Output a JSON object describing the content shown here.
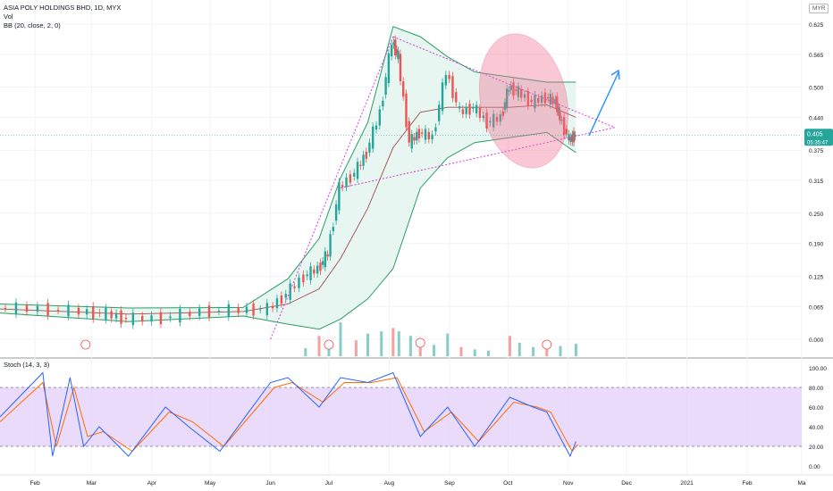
{
  "header": {
    "title": "ASIA POLY HOLDINGS BHD, 1D, MYX",
    "volume_label": "Vol",
    "bb_label": "BB (20, close, 2, 0)",
    "stoch_label": "Stoch (14, 3, 3)",
    "currency": "MYR"
  },
  "price_axis": {
    "ticks": [
      "0.625",
      "0.565",
      "0.500",
      "0.440",
      "0.375",
      "0.315",
      "0.250",
      "0.190",
      "0.125",
      "0.065",
      "0.000"
    ],
    "last_price": "0.405",
    "countdown": "05:35:47"
  },
  "stoch_axis": {
    "ticks": [
      "100.00",
      "80.00",
      "60.00",
      "40.00",
      "20.00",
      "0.00"
    ]
  },
  "time_axis": {
    "labels": [
      "Feb",
      "Mar",
      "Apr",
      "May",
      "Jun",
      "Jul",
      "Aug",
      "Sep",
      "Oct",
      "Nov",
      "Dec",
      "2021",
      "Feb",
      "Ma"
    ]
  },
  "colors": {
    "up": "#26a69a",
    "down": "#ef5350",
    "bb_line": "#2a9d64",
    "bb_basis": "#a05050",
    "bb_fill": "#e8f6f1",
    "trend_line": "#d63adf",
    "highlight": "#f07090",
    "arrow": "#1e90ff",
    "stoch_band": "#e1ccfa",
    "stoch_k": "#2962ff",
    "stoch_d": "#ff6d00"
  },
  "chart_data": {
    "type": "candlestick",
    "title": "ASIA POLY HOLDINGS BHD, 1D, MYX",
    "price_ylim": [
      0.0,
      0.64
    ],
    "price_path": [
      {
        "x": "2020-01-14",
        "y": 0.062
      },
      {
        "x": "2020-02-05",
        "y": 0.06
      },
      {
        "x": "2020-02-26",
        "y": 0.055
      },
      {
        "x": "2020-03-10",
        "y": 0.05
      },
      {
        "x": "2020-03-20",
        "y": 0.04
      },
      {
        "x": "2020-04-08",
        "y": 0.042
      },
      {
        "x": "2020-04-28",
        "y": 0.055
      },
      {
        "x": "2020-05-18",
        "y": 0.058
      },
      {
        "x": "2020-06-01",
        "y": 0.06
      },
      {
        "x": "2020-06-10",
        "y": 0.09
      },
      {
        "x": "2020-06-19",
        "y": 0.125
      },
      {
        "x": "2020-06-26",
        "y": 0.14
      },
      {
        "x": "2020-07-01",
        "y": 0.17
      },
      {
        "x": "2020-07-07",
        "y": 0.3
      },
      {
        "x": "2020-07-15",
        "y": 0.33
      },
      {
        "x": "2020-07-21",
        "y": 0.37
      },
      {
        "x": "2020-07-28",
        "y": 0.45
      },
      {
        "x": "2020-08-03",
        "y": 0.59
      },
      {
        "x": "2020-08-06",
        "y": 0.56
      },
      {
        "x": "2020-08-12",
        "y": 0.39
      },
      {
        "x": "2020-08-17",
        "y": 0.41
      },
      {
        "x": "2020-08-24",
        "y": 0.4
      },
      {
        "x": "2020-08-31",
        "y": 0.53
      },
      {
        "x": "2020-09-07",
        "y": 0.45
      },
      {
        "x": "2020-09-14",
        "y": 0.46
      },
      {
        "x": "2020-09-21",
        "y": 0.43
      },
      {
        "x": "2020-09-28",
        "y": 0.44
      },
      {
        "x": "2020-10-02",
        "y": 0.5
      },
      {
        "x": "2020-10-07",
        "y": 0.49
      },
      {
        "x": "2020-10-14",
        "y": 0.47
      },
      {
        "x": "2020-10-21",
        "y": 0.48
      },
      {
        "x": "2020-10-26",
        "y": 0.47
      },
      {
        "x": "2020-10-28",
        "y": 0.44
      },
      {
        "x": "2020-11-02",
        "y": 0.395
      },
      {
        "x": "2020-11-05",
        "y": 0.405
      }
    ],
    "bb_upper": [
      {
        "x": "2020-01-14",
        "y": 0.07
      },
      {
        "x": "2020-03-20",
        "y": 0.062
      },
      {
        "x": "2020-05-18",
        "y": 0.063
      },
      {
        "x": "2020-06-10",
        "y": 0.12
      },
      {
        "x": "2020-06-26",
        "y": 0.2
      },
      {
        "x": "2020-07-07",
        "y": 0.32
      },
      {
        "x": "2020-07-21",
        "y": 0.43
      },
      {
        "x": "2020-08-03",
        "y": 0.62
      },
      {
        "x": "2020-08-17",
        "y": 0.6
      },
      {
        "x": "2020-08-31",
        "y": 0.56
      },
      {
        "x": "2020-09-14",
        "y": 0.53
      },
      {
        "x": "2020-10-02",
        "y": 0.52
      },
      {
        "x": "2020-10-21",
        "y": 0.51
      },
      {
        "x": "2020-11-05",
        "y": 0.51
      }
    ],
    "bb_basis": [
      {
        "x": "2020-01-14",
        "y": 0.06
      },
      {
        "x": "2020-03-20",
        "y": 0.05
      },
      {
        "x": "2020-05-18",
        "y": 0.055
      },
      {
        "x": "2020-06-10",
        "y": 0.07
      },
      {
        "x": "2020-06-26",
        "y": 0.1
      },
      {
        "x": "2020-07-07",
        "y": 0.16
      },
      {
        "x": "2020-07-21",
        "y": 0.26
      },
      {
        "x": "2020-08-03",
        "y": 0.38
      },
      {
        "x": "2020-08-17",
        "y": 0.45
      },
      {
        "x": "2020-08-31",
        "y": 0.46
      },
      {
        "x": "2020-09-14",
        "y": 0.46
      },
      {
        "x": "2020-10-02",
        "y": 0.46
      },
      {
        "x": "2020-10-21",
        "y": 0.465
      },
      {
        "x": "2020-11-05",
        "y": 0.44
      }
    ],
    "bb_lower": [
      {
        "x": "2020-01-14",
        "y": 0.052
      },
      {
        "x": "2020-03-20",
        "y": 0.035
      },
      {
        "x": "2020-05-18",
        "y": 0.046
      },
      {
        "x": "2020-06-10",
        "y": 0.03
      },
      {
        "x": "2020-06-26",
        "y": 0.02
      },
      {
        "x": "2020-07-07",
        "y": 0.04
      },
      {
        "x": "2020-07-21",
        "y": 0.08
      },
      {
        "x": "2020-08-03",
        "y": 0.14
      },
      {
        "x": "2020-08-17",
        "y": 0.3
      },
      {
        "x": "2020-08-31",
        "y": 0.36
      },
      {
        "x": "2020-09-14",
        "y": 0.39
      },
      {
        "x": "2020-10-02",
        "y": 0.4
      },
      {
        "x": "2020-10-21",
        "y": 0.41
      },
      {
        "x": "2020-11-05",
        "y": 0.37
      }
    ],
    "trend_lines": [
      {
        "from": {
          "x": "2020-06-01",
          "y": 0.0
        },
        "to": {
          "x": "2020-08-03",
          "y": 0.6
        }
      },
      {
        "from": {
          "x": "2020-08-03",
          "y": 0.6
        },
        "to": {
          "x": "2020-11-25",
          "y": 0.42
        }
      },
      {
        "from": {
          "x": "2020-07-07",
          "y": 0.3
        },
        "to": {
          "x": "2020-11-25",
          "y": 0.42
        }
      }
    ],
    "volume": [
      {
        "x": "2020-06-19",
        "v": 7
      },
      {
        "x": "2020-06-26",
        "v": 18
      },
      {
        "x": "2020-07-01",
        "v": 12
      },
      {
        "x": "2020-07-07",
        "v": 30
      },
      {
        "x": "2020-07-15",
        "v": 14
      },
      {
        "x": "2020-07-21",
        "v": 20
      },
      {
        "x": "2020-07-28",
        "v": 22
      },
      {
        "x": "2020-08-03",
        "v": 25
      },
      {
        "x": "2020-08-06",
        "v": 22
      },
      {
        "x": "2020-08-12",
        "v": 18
      },
      {
        "x": "2020-08-17",
        "v": 14
      },
      {
        "x": "2020-08-24",
        "v": 10
      },
      {
        "x": "2020-08-31",
        "v": 20
      },
      {
        "x": "2020-09-07",
        "v": 8
      },
      {
        "x": "2020-09-14",
        "v": 6
      },
      {
        "x": "2020-09-21",
        "v": 5
      },
      {
        "x": "2020-10-02",
        "v": 18
      },
      {
        "x": "2020-10-07",
        "v": 12
      },
      {
        "x": "2020-10-14",
        "v": 8
      },
      {
        "x": "2020-10-21",
        "v": 10
      },
      {
        "x": "2020-10-28",
        "v": 9
      },
      {
        "x": "2020-11-05",
        "v": 11
      }
    ],
    "stoch_ylim": [
      0,
      100
    ],
    "stoch_bands": [
      20,
      80
    ],
    "stoch_k": [
      {
        "x": "2020-01-14",
        "y": 50
      },
      {
        "x": "2020-02-05",
        "y": 95
      },
      {
        "x": "2020-02-10",
        "y": 10
      },
      {
        "x": "2020-02-19",
        "y": 90
      },
      {
        "x": "2020-02-26",
        "y": 20
      },
      {
        "x": "2020-03-05",
        "y": 40
      },
      {
        "x": "2020-03-20",
        "y": 10
      },
      {
        "x": "2020-04-08",
        "y": 60
      },
      {
        "x": "2020-04-20",
        "y": 40
      },
      {
        "x": "2020-05-06",
        "y": 15
      },
      {
        "x": "2020-06-01",
        "y": 85
      },
      {
        "x": "2020-06-10",
        "y": 90
      },
      {
        "x": "2020-06-26",
        "y": 60
      },
      {
        "x": "2020-07-07",
        "y": 90
      },
      {
        "x": "2020-07-21",
        "y": 85
      },
      {
        "x": "2020-08-03",
        "y": 95
      },
      {
        "x": "2020-08-17",
        "y": 30
      },
      {
        "x": "2020-08-31",
        "y": 60
      },
      {
        "x": "2020-09-14",
        "y": 20
      },
      {
        "x": "2020-10-02",
        "y": 70
      },
      {
        "x": "2020-10-14",
        "y": 60
      },
      {
        "x": "2020-10-21",
        "y": 55
      },
      {
        "x": "2020-11-02",
        "y": 10
      },
      {
        "x": "2020-11-05",
        "y": 25
      }
    ],
    "stoch_d": [
      {
        "x": "2020-01-14",
        "y": 45
      },
      {
        "x": "2020-02-05",
        "y": 85
      },
      {
        "x": "2020-02-12",
        "y": 20
      },
      {
        "x": "2020-02-21",
        "y": 80
      },
      {
        "x": "2020-02-28",
        "y": 30
      },
      {
        "x": "2020-03-07",
        "y": 35
      },
      {
        "x": "2020-03-22",
        "y": 15
      },
      {
        "x": "2020-04-10",
        "y": 55
      },
      {
        "x": "2020-04-22",
        "y": 45
      },
      {
        "x": "2020-05-08",
        "y": 20
      },
      {
        "x": "2020-06-03",
        "y": 80
      },
      {
        "x": "2020-06-12",
        "y": 85
      },
      {
        "x": "2020-06-28",
        "y": 65
      },
      {
        "x": "2020-07-09",
        "y": 85
      },
      {
        "x": "2020-07-23",
        "y": 85
      },
      {
        "x": "2020-08-05",
        "y": 90
      },
      {
        "x": "2020-08-19",
        "y": 35
      },
      {
        "x": "2020-09-02",
        "y": 55
      },
      {
        "x": "2020-09-16",
        "y": 25
      },
      {
        "x": "2020-10-04",
        "y": 65
      },
      {
        "x": "2020-10-16",
        "y": 60
      },
      {
        "x": "2020-10-23",
        "y": 55
      },
      {
        "x": "2020-11-03",
        "y": 15
      },
      {
        "x": "2020-11-06",
        "y": 22
      }
    ]
  }
}
